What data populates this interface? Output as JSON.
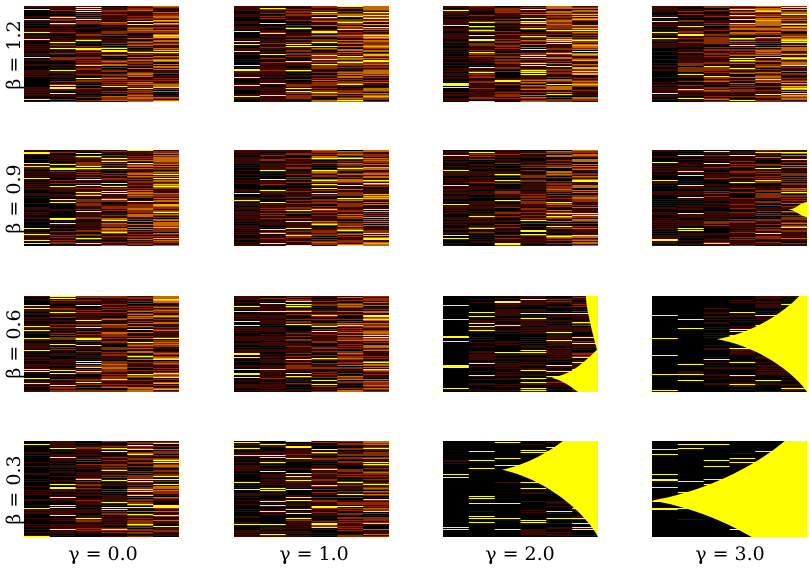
{
  "chart_data": {
    "type": "heatmap",
    "title": "",
    "description_free": true,
    "rows_label_values": [
      1.2,
      0.9,
      0.6,
      0.3
    ],
    "cols_label_values": [
      0.0,
      1.0,
      2.0,
      3.0
    ],
    "row_labels": [
      "β = 1.2",
      "β = 0.9",
      "β = 0.6",
      "β = 0.3"
    ],
    "col_labels": [
      "γ = 0.0",
      "γ = 1.0",
      "γ = 2.0",
      "γ = 3.0"
    ],
    "colormap": [
      "#000000",
      "#3a0800",
      "#8a2a00",
      "#c26a00",
      "#f0b000",
      "#ffff00"
    ],
    "panels": [
      {
        "beta": 1.2,
        "gamma": 0.0,
        "pattern": "streaks",
        "intensity": 0.55
      },
      {
        "beta": 1.2,
        "gamma": 1.0,
        "pattern": "streaks",
        "intensity": 0.55
      },
      {
        "beta": 1.2,
        "gamma": 2.0,
        "pattern": "streaks",
        "intensity": 0.58
      },
      {
        "beta": 1.2,
        "gamma": 3.0,
        "pattern": "streaks",
        "intensity": 0.6
      },
      {
        "beta": 0.9,
        "gamma": 0.0,
        "pattern": "streaks",
        "intensity": 0.55
      },
      {
        "beta": 0.9,
        "gamma": 1.0,
        "pattern": "streaks",
        "intensity": 0.55
      },
      {
        "beta": 0.9,
        "gamma": 2.0,
        "pattern": "streaks",
        "intensity": 0.5
      },
      {
        "beta": 0.9,
        "gamma": 3.0,
        "pattern": "wedge",
        "intensity": 0.45,
        "wedge_center": 0.62,
        "wedge_start": 0.88,
        "wedge_spread": 0.08
      },
      {
        "beta": 0.6,
        "gamma": 0.0,
        "pattern": "streaks",
        "intensity": 0.55
      },
      {
        "beta": 0.6,
        "gamma": 1.0,
        "pattern": "streaks",
        "intensity": 0.5
      },
      {
        "beta": 0.6,
        "gamma": 2.0,
        "pattern": "fork",
        "intensity": 0.3,
        "fork_start": 0.7
      },
      {
        "beta": 0.6,
        "gamma": 3.0,
        "pattern": "wedge",
        "intensity": 0.25,
        "wedge_center": 0.45,
        "wedge_start": 0.42,
        "wedge_spread": 0.55
      },
      {
        "beta": 0.3,
        "gamma": 0.0,
        "pattern": "streaks",
        "intensity": 0.45
      },
      {
        "beta": 0.3,
        "gamma": 1.0,
        "pattern": "streaks",
        "intensity": 0.42
      },
      {
        "beta": 0.3,
        "gamma": 2.0,
        "pattern": "wedge",
        "intensity": 0.2,
        "wedge_center": 0.3,
        "wedge_start": 0.38,
        "wedge_spread": 0.7
      },
      {
        "beta": 0.3,
        "gamma": 3.0,
        "pattern": "wedge",
        "intensity": 0.15,
        "wedge_center": 0.62,
        "wedge_start": 0.0,
        "wedge_spread": 0.9
      }
    ]
  }
}
